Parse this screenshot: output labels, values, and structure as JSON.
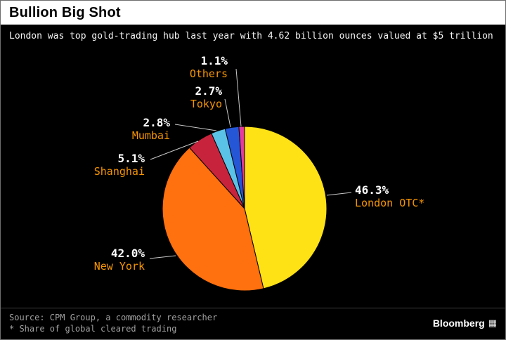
{
  "header": {
    "title": "Bullion Big Shot",
    "subtitle": "London was top gold-trading hub last year with 4.62 billion ounces valued at $5 trillion"
  },
  "footer": {
    "source_line1": "Source: CPM Group, a commodity researcher",
    "source_line2": "* Share of global cleared trading",
    "brand": "Bloomberg",
    "grid_icon": "▦"
  },
  "chart_data": {
    "type": "pie",
    "title": "Bullion Big Shot",
    "subtitle": "London was top gold-trading hub last year with 4.62 billion ounces valued at $5 trillion",
    "unit": "%",
    "direction": "clockwise",
    "start_angle_deg": 0,
    "legend_position": "none",
    "background": "#000000",
    "percent_label_color": "#ffffff",
    "name_label_color": "#f79500",
    "leader_line_color": "#c8c8c8",
    "slices": [
      {
        "label": "London OTC*",
        "value": 46.3,
        "display": "46.3%",
        "color": "#ffe215"
      },
      {
        "label": "New York",
        "value": 42.0,
        "display": "42.0%",
        "color": "#ff700e"
      },
      {
        "label": "Shanghai",
        "value": 5.1,
        "display": "5.1%",
        "color": "#c8233c"
      },
      {
        "label": "Mumbai",
        "value": 2.8,
        "display": "2.8%",
        "color": "#5bc2e7"
      },
      {
        "label": "Tokyo",
        "value": 2.7,
        "display": "2.7%",
        "color": "#2456d6"
      },
      {
        "label": "Others",
        "value": 1.1,
        "display": "1.1%",
        "color": "#e23a9e"
      }
    ]
  }
}
